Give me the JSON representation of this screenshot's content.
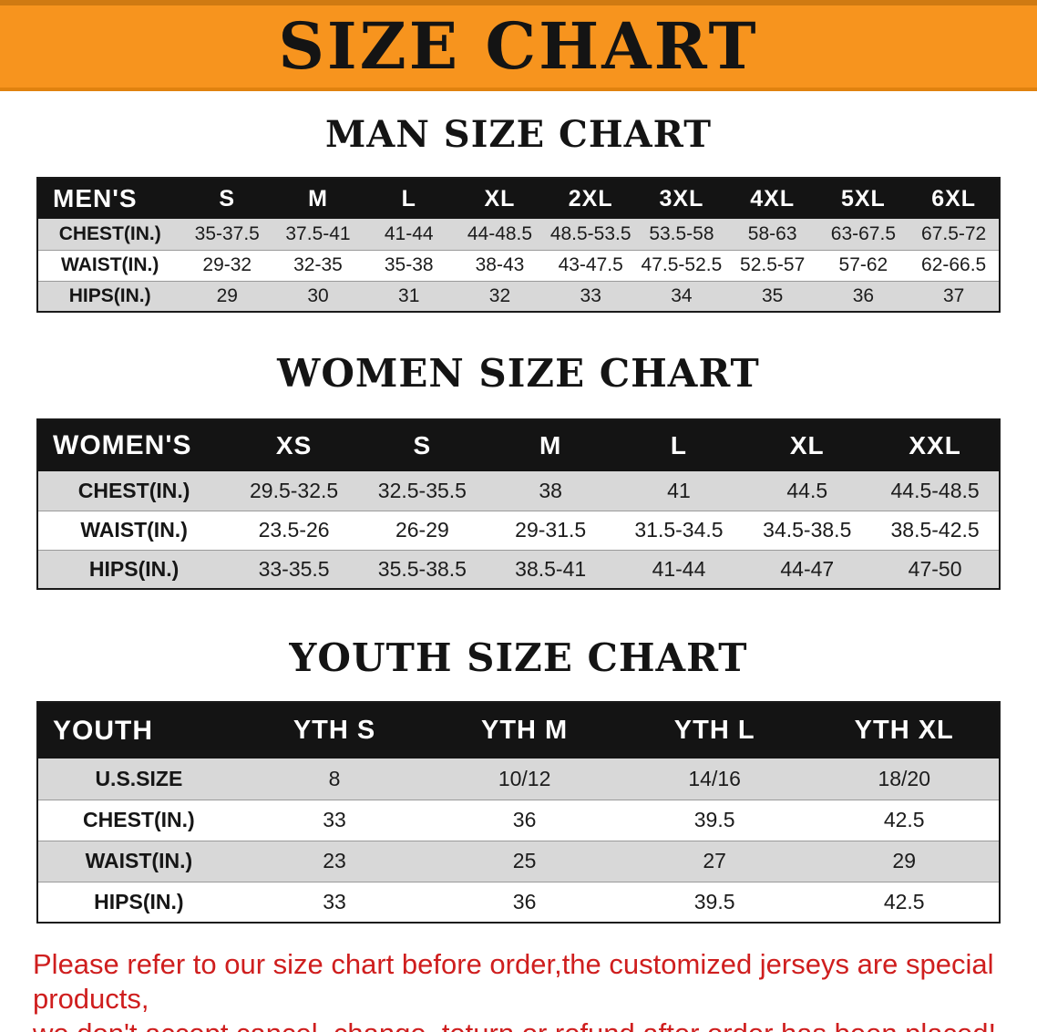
{
  "banner": {
    "title": "SIZE CHART"
  },
  "colors": {
    "banner_orange": "#f7941e",
    "banner_edge": "#cf7a12",
    "banner_edge2": "#e0820f",
    "heading_black": "#141414",
    "table_header_bg": "#141414",
    "table_header_text": "#ffffff",
    "row_gray": "#d8d8d8",
    "table_border": "#1a1a1a",
    "notice_red": "#cf1e1e"
  },
  "chart_data": [
    {
      "type": "table",
      "title": "MAN SIZE CHART",
      "corner_label": "MEN'S",
      "columns": [
        "S",
        "M",
        "L",
        "XL",
        "2XL",
        "3XL",
        "4XL",
        "5XL",
        "6XL"
      ],
      "rows": [
        {
          "label": "CHEST(IN.)",
          "values": [
            "35-37.5",
            "37.5-41",
            "41-44",
            "44-48.5",
            "48.5-53.5",
            "53.5-58",
            "58-63",
            "63-67.5",
            "67.5-72"
          ]
        },
        {
          "label": "WAIST(IN.)",
          "values": [
            "29-32",
            "32-35",
            "35-38",
            "38-43",
            "43-47.5",
            "47.5-52.5",
            "52.5-57",
            "57-62",
            "62-66.5"
          ]
        },
        {
          "label": "HIPS(IN.)",
          "values": [
            "29",
            "30",
            "31",
            "32",
            "33",
            "34",
            "35",
            "36",
            "37"
          ]
        }
      ],
      "layout": {
        "header_position": "top",
        "row_striping": "odd-gray"
      }
    },
    {
      "type": "table",
      "title": "WOMEN SIZE CHART",
      "corner_label": "WOMEN'S",
      "columns": [
        "XS",
        "S",
        "M",
        "L",
        "XL",
        "XXL"
      ],
      "rows": [
        {
          "label": "CHEST(IN.)",
          "values": [
            "29.5-32.5",
            "32.5-35.5",
            "38",
            "41",
            "44.5",
            "44.5-48.5"
          ]
        },
        {
          "label": "WAIST(IN.)",
          "values": [
            "23.5-26",
            "26-29",
            "29-31.5",
            "31.5-34.5",
            "34.5-38.5",
            "38.5-42.5"
          ]
        },
        {
          "label": "HIPS(IN.)",
          "values": [
            "33-35.5",
            "35.5-38.5",
            "38.5-41",
            "41-44",
            "44-47",
            "47-50"
          ]
        }
      ],
      "layout": {
        "header_position": "top",
        "row_striping": "odd-gray"
      }
    },
    {
      "type": "table",
      "title": "YOUTH SIZE CHART",
      "corner_label": "YOUTH",
      "columns": [
        "YTH S",
        "YTH M",
        "YTH L",
        "YTH XL"
      ],
      "rows": [
        {
          "label": "U.S.SIZE",
          "values": [
            "8",
            "10/12",
            "14/16",
            "18/20"
          ]
        },
        {
          "label": "CHEST(IN.)",
          "values": [
            "33",
            "36",
            "39.5",
            "42.5"
          ]
        },
        {
          "label": "WAIST(IN.)",
          "values": [
            "23",
            "25",
            "27",
            "29"
          ]
        },
        {
          "label": "HIPS(IN.)",
          "values": [
            "33",
            "36",
            "39.5",
            "42.5"
          ]
        }
      ],
      "layout": {
        "header_position": "top",
        "row_striping": "odd-gray"
      }
    }
  ],
  "footer": {
    "line1": "Please refer to our size chart before order,the customized jerseys are special products,",
    "line2": "we don't accept cancel, change, teturn or refund after order has been placed!"
  }
}
